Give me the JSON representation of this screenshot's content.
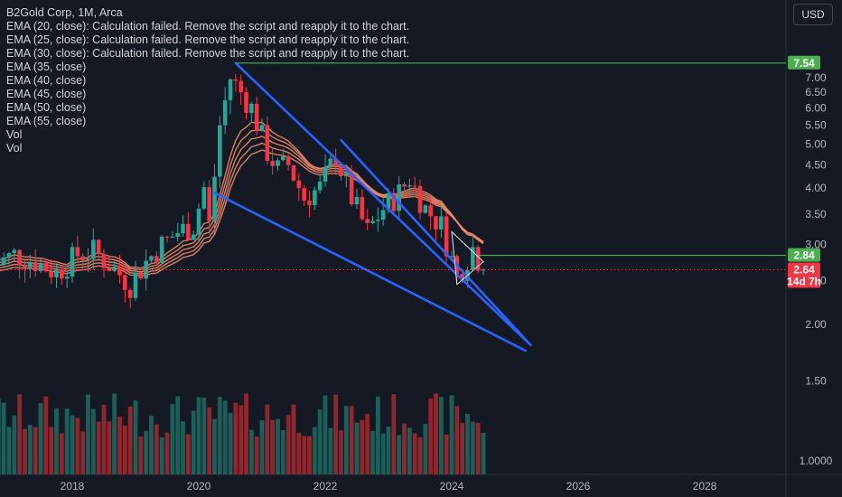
{
  "header": {
    "title": "B2Gold Corp, 1M, Arca",
    "currency_button": "USD",
    "indicators": [
      "EMA (20, close): Calculation failed. Remove the script and reapply it to the chart.",
      "EMA (25, close): Calculation failed. Remove the script and reapply it to the chart.",
      "EMA (30, close): Calculation failed. Remove the script and reapply it to the chart.",
      "EMA (35, close)",
      "EMA (40, close)",
      "EMA (45, close)",
      "EMA (50, close)",
      "EMA (55, close)",
      "Vol",
      "Vol"
    ]
  },
  "colors": {
    "background": "#151924",
    "up": "#26a69a",
    "down": "#f23645",
    "vol_up": "#1f6b62",
    "vol_down": "#a32a32",
    "ema": "#f08a6a",
    "trend": "#2962ff",
    "level_line": "#4caf50",
    "price_tag": "#f23645"
  },
  "chart_data": {
    "type": "candlestick",
    "y_axis": {
      "scale": "log",
      "ticks": [
        "7.00",
        "6.50",
        "6.00",
        "5.50",
        "5.00",
        "4.50",
        "4.00",
        "3.50",
        "3.00",
        "2.50",
        "2.00",
        "1.50",
        "1.0000"
      ]
    },
    "x_axis": {
      "ticks": [
        "2018",
        "2020",
        "2022",
        "2024",
        "2026",
        "2028"
      ]
    },
    "price_tags": [
      {
        "value": 7.54,
        "label": "7.54",
        "color": "#4caf50"
      },
      {
        "value": 2.84,
        "label": "2.84",
        "color": "#4caf50"
      },
      {
        "value": 2.64,
        "label": "2.64",
        "sublabel": "14d 7h",
        "color": "#f23645"
      }
    ],
    "levels": [
      7.54,
      2.84
    ],
    "current_price": 2.64,
    "trend_lines": [
      {
        "from": [
          "2020-08",
          7.54
        ],
        "to": [
          "2025-04",
          1.8
        ]
      },
      {
        "from": [
          "2022-04",
          5.1
        ],
        "to": [
          "2025-04",
          1.8
        ]
      },
      {
        "from": [
          "2020-04",
          3.9
        ],
        "to": [
          "2025-03",
          1.75
        ]
      }
    ],
    "series_anchors": [
      [
        "2016-10",
        2.7
      ],
      [
        "2017-02",
        2.85
      ],
      [
        "2017-06",
        2.75
      ],
      [
        "2017-10",
        2.6
      ],
      [
        "2018-02",
        2.85
      ],
      [
        "2018-05",
        2.9
      ],
      [
        "2018-09",
        2.65
      ],
      [
        "2018-12",
        2.45
      ],
      [
        "2019-03",
        2.75
      ],
      [
        "2019-06",
        3.0
      ],
      [
        "2019-09",
        3.2
      ],
      [
        "2019-12",
        3.3
      ],
      [
        "2020-02",
        4.0
      ],
      [
        "2020-03",
        3.3
      ],
      [
        "2020-05",
        5.5
      ],
      [
        "2020-07",
        7.0
      ],
      [
        "2020-09",
        6.5
      ],
      [
        "2020-11",
        6.0
      ],
      [
        "2021-02",
        4.8
      ],
      [
        "2021-04",
        4.4
      ],
      [
        "2021-06",
        4.5
      ],
      [
        "2021-09",
        3.8
      ],
      [
        "2021-12",
        4.0
      ],
      [
        "2022-03",
        4.7
      ],
      [
        "2022-06",
        3.8
      ],
      [
        "2022-09",
        3.2
      ],
      [
        "2022-12",
        3.6
      ],
      [
        "2023-03",
        3.9
      ],
      [
        "2023-05",
        4.2
      ],
      [
        "2023-08",
        3.6
      ],
      [
        "2023-11",
        3.3
      ],
      [
        "2024-02",
        2.55
      ],
      [
        "2024-05",
        2.95
      ],
      [
        "2024-07",
        2.64
      ]
    ],
    "ema_periods": [
      35,
      40,
      45,
      50,
      55
    ]
  }
}
